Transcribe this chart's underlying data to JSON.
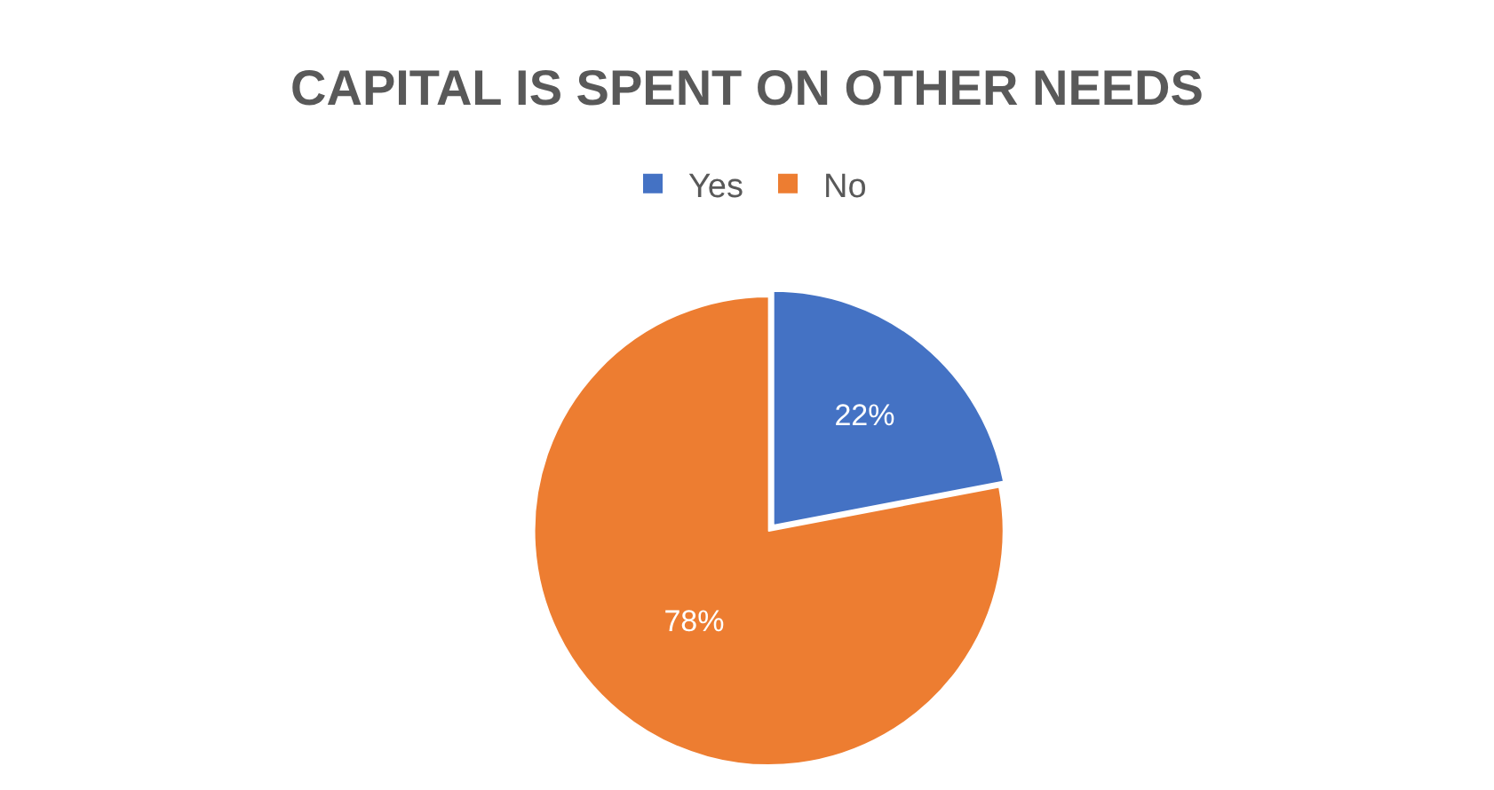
{
  "chart_data": {
    "type": "pie",
    "title": "CAPITAL IS SPENT ON OTHER NEEDS",
    "categories": [
      "Yes",
      "No"
    ],
    "values": [
      22,
      78
    ],
    "colors": [
      "#4472c4",
      "#ed7d31"
    ],
    "value_labels": [
      "22%",
      "78%"
    ],
    "legend": "top"
  }
}
